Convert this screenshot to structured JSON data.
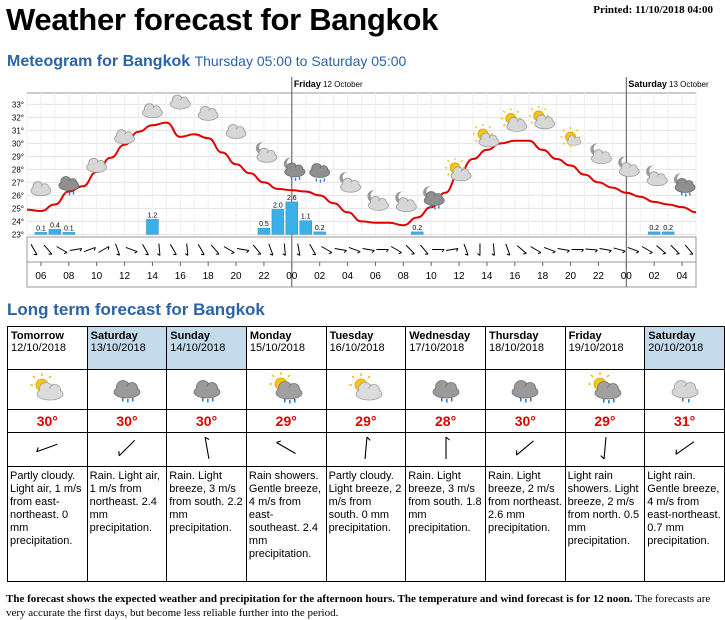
{
  "header": {
    "title": "Weather forecast for Bangkok",
    "printed_label": "Printed:",
    "printed_value": "11/10/2018 04:00"
  },
  "meteogram": {
    "title": "Meteogram for Bangkok",
    "subtitle": "Thursday 05:00 to Saturday 05:00",
    "day_labels": [
      {
        "day": "Friday",
        "date": "12 October"
      },
      {
        "day": "Saturday",
        "date": "13 October"
      }
    ],
    "y_ticks": [
      "33°",
      "32°",
      "31°",
      "30°",
      "29°",
      "28°",
      "27°",
      "26°",
      "25°",
      "24°",
      "23°"
    ],
    "x_ticks": [
      "06",
      "08",
      "10",
      "12",
      "14",
      "16",
      "18",
      "20",
      "22",
      "00",
      "02",
      "04",
      "06",
      "08",
      "10",
      "12",
      "14",
      "16",
      "18",
      "20",
      "22",
      "00",
      "02",
      "04"
    ],
    "temperature_hourly": [
      24.9,
      24.8,
      25.3,
      26.3,
      26.7,
      27.8,
      28.9,
      29.9,
      30.9,
      31.4,
      31.6,
      30.5,
      30.7,
      30.4,
      29.3,
      28.4,
      27.7,
      27.0,
      26.5,
      26.4,
      26.3,
      26.0,
      25.4,
      24.7,
      24.0,
      23.9,
      23.9,
      23.7,
      24.3,
      25.1,
      26.2,
      27.7,
      28.8,
      29.5,
      30.0,
      30.2,
      30.2,
      29.5,
      28.8,
      28.3,
      27.6,
      27.0,
      26.6,
      26.2,
      25.9,
      25.5,
      25.3,
      25.1,
      24.7
    ],
    "precipitation": [
      {
        "hour": 1,
        "value": "0.1"
      },
      {
        "hour": 2,
        "value": "0.4"
      },
      {
        "hour": 3,
        "value": "0.1"
      },
      {
        "hour": 9,
        "value": "1.2"
      },
      {
        "hour": 17,
        "value": "0.5"
      },
      {
        "hour": 18,
        "value": "2.0"
      },
      {
        "hour": 19,
        "value": "2.6"
      },
      {
        "hour": 20,
        "value": "1.1"
      },
      {
        "hour": 21,
        "value": "0.2"
      },
      {
        "hour": 28,
        "value": "0.2"
      },
      {
        "hour": 45,
        "value": "0.2"
      },
      {
        "hour": 46,
        "value": "0.2"
      }
    ],
    "wind_directions_deg": [
      150,
      140,
      120,
      80,
      70,
      60,
      160,
      110,
      150,
      175,
      150,
      175,
      150,
      140,
      120,
      100,
      140,
      160,
      175,
      170,
      150,
      120,
      100,
      110,
      100,
      90,
      120,
      135,
      140,
      90,
      80,
      160,
      180,
      175,
      160,
      130,
      120,
      110,
      100,
      90,
      95,
      100,
      105,
      110,
      120,
      130,
      135,
      140
    ]
  },
  "longterm": {
    "title": "Long term forecast for Bangkok",
    "days": [
      {
        "day": "Tomorrow",
        "date": "12/10/2018",
        "weekend": false,
        "icon": "partly-cloudy-icon",
        "temp": "30°",
        "wind_deg": 250,
        "desc": "Partly cloudy. Light air, 1 m/s from east-northeast. 0 mm precipitation."
      },
      {
        "day": "Saturday",
        "date": "13/10/2018",
        "weekend": true,
        "icon": "rain-icon",
        "temp": "30°",
        "wind_deg": 225,
        "desc": "Rain. Light air, 1 m/s from northeast. 2.4 mm precipitation."
      },
      {
        "day": "Sunday",
        "date": "14/10/2018",
        "weekend": true,
        "icon": "rain-icon",
        "temp": "30°",
        "wind_deg": 350,
        "desc": "Rain. Light breeze, 3 m/s from south. 2.2 mm precipitation."
      },
      {
        "day": "Monday",
        "date": "15/10/2018",
        "weekend": false,
        "icon": "rain-showers-icon",
        "temp": "29°",
        "wind_deg": 300,
        "desc": "Rain showers. Gentle breeze, 4 m/s from east-southeast. 2.4 mm precipitation."
      },
      {
        "day": "Tuesday",
        "date": "16/10/2018",
        "weekend": false,
        "icon": "partly-cloudy-icon",
        "temp": "29°",
        "wind_deg": 5,
        "desc": "Partly cloudy. Light breeze, 2 m/s from south. 0 mm precipitation."
      },
      {
        "day": "Wednesday",
        "date": "17/10/2018",
        "weekend": false,
        "icon": "rain-icon",
        "temp": "28°",
        "wind_deg": 0,
        "desc": "Rain. Light breeze, 3 m/s from south. 1.8 mm precipitation."
      },
      {
        "day": "Thursday",
        "date": "18/10/2018",
        "weekend": false,
        "icon": "rain-icon",
        "temp": "30°",
        "wind_deg": 230,
        "desc": "Rain. Light breeze, 2 m/s from northeast. 2.6 mm precipitation."
      },
      {
        "day": "Friday",
        "date": "19/10/2018",
        "weekend": false,
        "icon": "rain-showers-icon",
        "temp": "29°",
        "wind_deg": 185,
        "desc": "Light rain showers. Light breeze, 2 m/s from north. 0.5 mm precipitation."
      },
      {
        "day": "Saturday",
        "date": "20/10/2018",
        "weekend": true,
        "icon": "light-rain-icon",
        "temp": "31°",
        "wind_deg": 235,
        "desc": "Light rain. Gentle breeze, 4 m/s from east-northeast. 0.7 mm precipitation."
      }
    ]
  },
  "footer": {
    "bold_text": "The forecast shows the expected weather and precipitation for the afternoon hours. The temperature and wind forecast is for 12 noon.",
    "normal_text": "The forecasts are very accurate the first days, but become less reliable further into the period."
  },
  "colors": {
    "title_blue": "#2b63a6",
    "temp_red": "#e00000",
    "precip_blue": "#3ab0ea",
    "weekend_bg": "#c4dbec"
  }
}
